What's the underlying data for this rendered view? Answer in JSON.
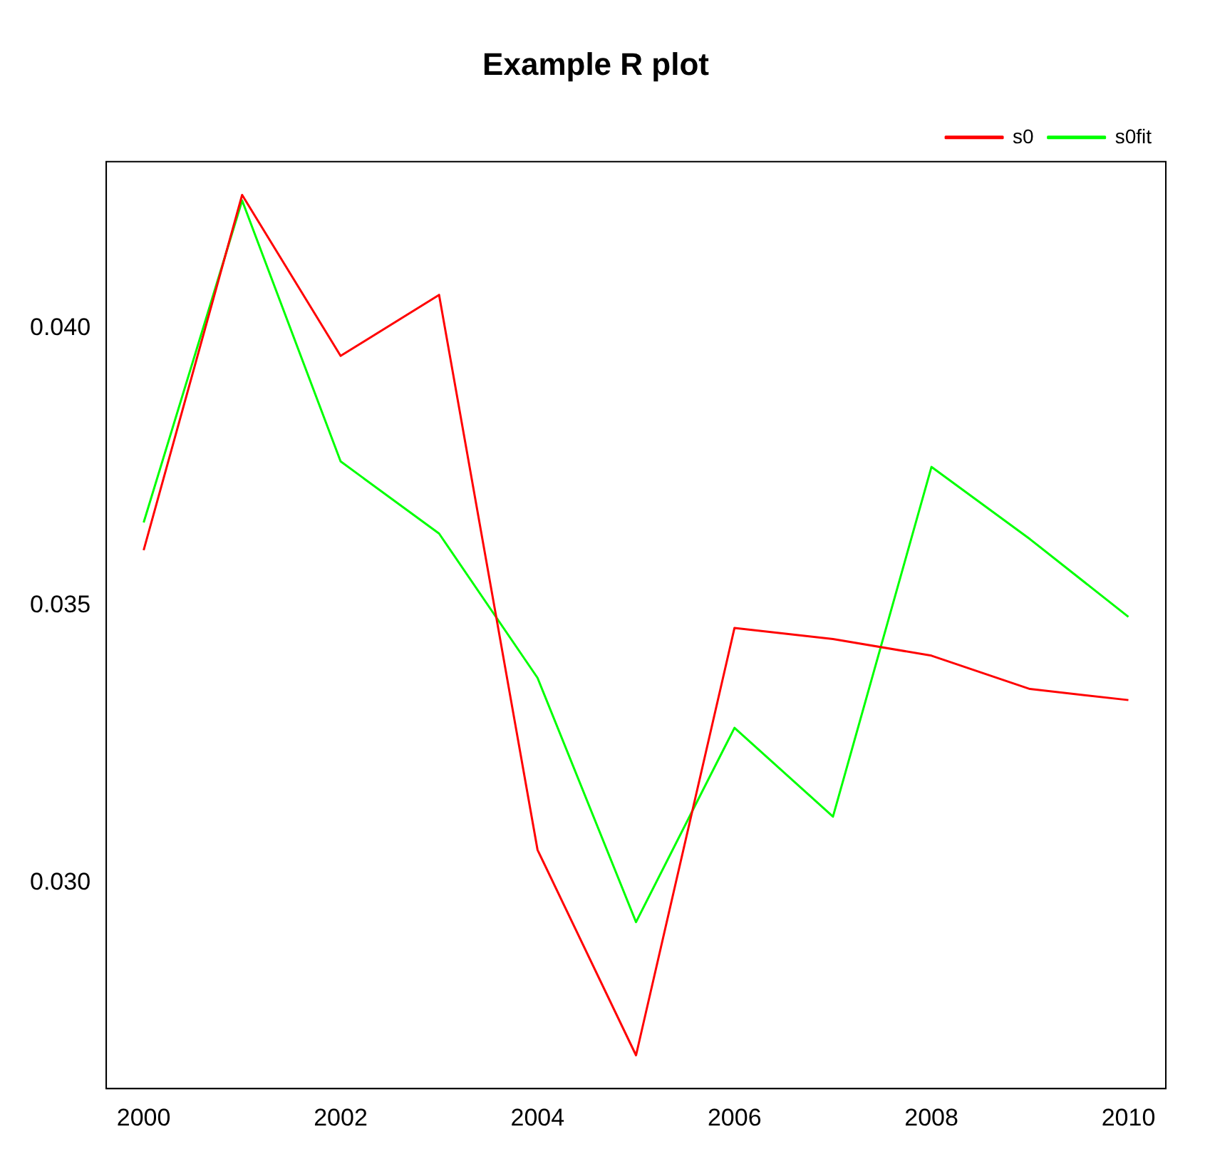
{
  "chart_data": {
    "type": "line",
    "title": "Example R plot",
    "x": [
      2000,
      2001,
      2002,
      2003,
      2004,
      2005,
      2006,
      2007,
      2008,
      2009,
      2010
    ],
    "series": [
      {
        "name": "s0",
        "color": "#ff0000",
        "values": [
          0.036,
          0.0424,
          0.0395,
          0.0406,
          0.0306,
          0.0269,
          0.0346,
          0.0344,
          0.0341,
          0.0335,
          0.0333
        ]
      },
      {
        "name": "s0fit",
        "color": "#00ff00",
        "values": [
          0.0365,
          0.0423,
          0.0376,
          0.0363,
          0.0337,
          0.0293,
          0.0328,
          0.0312,
          0.0375,
          0.0362,
          0.0348
        ]
      }
    ],
    "xlim": [
      1999.62,
      2010.38
    ],
    "xticks": [
      2000,
      2002,
      2004,
      2006,
      2008,
      2010
    ],
    "ylim": [
      0.0263,
      0.043
    ],
    "yticks": [
      {
        "value": 0.03,
        "label": "0.030"
      },
      {
        "value": 0.035,
        "label": "0.035"
      },
      {
        "value": 0.04,
        "label": "0.040"
      }
    ],
    "grid": false,
    "legend": "top right",
    "marker": "none",
    "line_style": "solid"
  }
}
